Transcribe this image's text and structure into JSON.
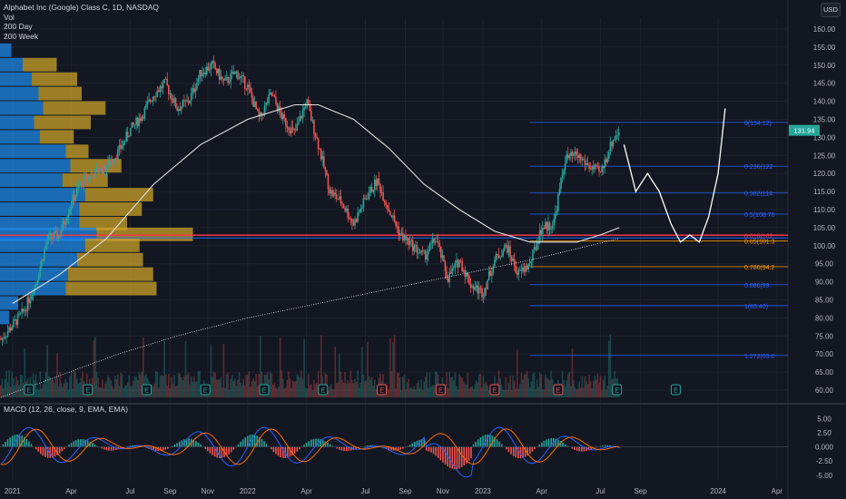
{
  "legend": {
    "symbol": "Alphabet Inc (Google) Class C, 1D, NASDAQ",
    "vol": "Vol",
    "ma200d": "200 Day",
    "ma200w": "200 Week"
  },
  "currency_button": "USD",
  "macd_label": "MACD (12, 26, close, 9, EMA, EMA)",
  "price_tag": "131.94",
  "colors": {
    "background": "#131722",
    "fib_blue": "#2962ff",
    "fib_key_red": "#f23645",
    "fib_orange": "#ff9800",
    "vp_blue": "#1e88e5",
    "vp_gold": "#c9a227",
    "macd_line": "#2962ff",
    "signal_line": "#ff6d00",
    "up": "#26a69a",
    "down": "#ef5350"
  },
  "chart_data": {
    "type": "line",
    "price_axis": {
      "ticks": [
        "160.00",
        "155.00",
        "150.00",
        "145.00",
        "140.00",
        "135.00",
        "130.00",
        "125.00",
        "120.00",
        "115.00",
        "110.00",
        "105.00",
        "100.00",
        "95.00",
        "90.00",
        "85.00",
        "80.00",
        "75.00",
        "70.00",
        "65.00",
        "60.00"
      ],
      "ylim": [
        58,
        163
      ]
    },
    "macd_axis": {
      "ticks": [
        "5.00",
        "2.50",
        "0.000",
        "-2.50",
        "-5.00"
      ],
      "ylim": [
        -6,
        6.5
      ]
    },
    "x_axis": {
      "labels": [
        {
          "t": 2021.0,
          "text": "2021"
        },
        {
          "t": 2021.25,
          "text": "Apr"
        },
        {
          "t": 2021.5,
          "text": "Jul"
        },
        {
          "t": 2021.67,
          "text": "Sep"
        },
        {
          "t": 2021.83,
          "text": "Nov"
        },
        {
          "t": 2022.0,
          "text": "2022"
        },
        {
          "t": 2022.25,
          "text": "Apr"
        },
        {
          "t": 2022.5,
          "text": "Jul"
        },
        {
          "t": 2022.67,
          "text": "Sep"
        },
        {
          "t": 2022.83,
          "text": "Nov"
        },
        {
          "t": 2023.0,
          "text": "2023"
        },
        {
          "t": 2023.25,
          "text": "Apr"
        },
        {
          "t": 2023.5,
          "text": "Jul"
        },
        {
          "t": 2023.67,
          "text": "Sep"
        },
        {
          "t": 2024.0,
          "text": "2024"
        },
        {
          "t": 2024.25,
          "text": "Apr"
        }
      ]
    },
    "price_series": [
      [
        2020.95,
        74
      ],
      [
        2021.0,
        78
      ],
      [
        2021.05,
        82
      ],
      [
        2021.1,
        90
      ],
      [
        2021.15,
        102
      ],
      [
        2021.2,
        103
      ],
      [
        2021.25,
        112
      ],
      [
        2021.3,
        118
      ],
      [
        2021.35,
        120
      ],
      [
        2021.4,
        122
      ],
      [
        2021.45,
        126
      ],
      [
        2021.5,
        132
      ],
      [
        2021.55,
        136
      ],
      [
        2021.6,
        142
      ],
      [
        2021.65,
        145
      ],
      [
        2021.7,
        138
      ],
      [
        2021.75,
        140
      ],
      [
        2021.8,
        148
      ],
      [
        2021.85,
        150
      ],
      [
        2021.9,
        145
      ],
      [
        2021.95,
        148
      ],
      [
        2022.0,
        144
      ],
      [
        2022.05,
        135
      ],
      [
        2022.1,
        142
      ],
      [
        2022.15,
        135
      ],
      [
        2022.2,
        131
      ],
      [
        2022.25,
        140
      ],
      [
        2022.3,
        128
      ],
      [
        2022.35,
        115
      ],
      [
        2022.4,
        112
      ],
      [
        2022.45,
        106
      ],
      [
        2022.5,
        113
      ],
      [
        2022.55,
        118
      ],
      [
        2022.6,
        110
      ],
      [
        2022.65,
        103
      ],
      [
        2022.7,
        100
      ],
      [
        2022.75,
        97
      ],
      [
        2022.8,
        102
      ],
      [
        2022.85,
        91
      ],
      [
        2022.9,
        96
      ],
      [
        2022.95,
        89
      ],
      [
        2023.0,
        87
      ],
      [
        2023.05,
        96
      ],
      [
        2023.1,
        100
      ],
      [
        2023.15,
        92
      ],
      [
        2023.2,
        95
      ],
      [
        2023.25,
        105
      ],
      [
        2023.3,
        106
      ],
      [
        2023.35,
        124
      ],
      [
        2023.4,
        125
      ],
      [
        2023.45,
        122
      ],
      [
        2023.5,
        120
      ],
      [
        2023.55,
        129
      ],
      [
        2023.58,
        131.94
      ]
    ],
    "ma200d": [
      [
        2021.0,
        84
      ],
      [
        2021.2,
        92
      ],
      [
        2021.4,
        102
      ],
      [
        2021.6,
        117
      ],
      [
        2021.8,
        128
      ],
      [
        2022.0,
        135
      ],
      [
        2022.2,
        139
      ],
      [
        2022.3,
        139
      ],
      [
        2022.45,
        135
      ],
      [
        2022.6,
        127
      ],
      [
        2022.75,
        117
      ],
      [
        2022.9,
        110
      ],
      [
        2023.05,
        104
      ],
      [
        2023.2,
        101
      ],
      [
        2023.3,
        101
      ],
      [
        2023.4,
        101
      ],
      [
        2023.5,
        103
      ],
      [
        2023.58,
        105
      ]
    ],
    "ma200w": [
      [
        2020.95,
        58
      ],
      [
        2021.2,
        64
      ],
      [
        2021.45,
        70
      ],
      [
        2021.7,
        75
      ],
      [
        2022.0,
        80
      ],
      [
        2022.3,
        84
      ],
      [
        2022.6,
        88
      ],
      [
        2022.9,
        92
      ],
      [
        2023.2,
        96
      ],
      [
        2023.58,
        102
      ]
    ],
    "projection": [
      [
        2023.6,
        128
      ],
      [
        2023.65,
        115
      ],
      [
        2023.7,
        120
      ],
      [
        2023.75,
        115
      ],
      [
        2023.8,
        106
      ],
      [
        2023.84,
        101
      ],
      [
        2023.88,
        103
      ],
      [
        2023.92,
        101
      ],
      [
        2023.96,
        108
      ],
      [
        2024.0,
        120
      ],
      [
        2024.03,
        138
      ]
    ],
    "fib_levels": [
      {
        "ratio": "0",
        "label": "0(134.12)",
        "price": 134.12,
        "color": "#2962ff"
      },
      {
        "ratio": "0.236",
        "label": "0.236(122",
        "price": 122.0,
        "color": "#2962ff"
      },
      {
        "ratio": "0.382",
        "label": "0.382(114.",
        "price": 114.6,
        "color": "#2962ff"
      },
      {
        "ratio": "0.5",
        "label": "0.5(108.76",
        "price": 108.76,
        "color": "#2962ff"
      },
      {
        "ratio": "0.618",
        "label": "0.618(102",
        "price": 102.9,
        "color": "#f23645"
      },
      {
        "ratio": "0.65",
        "label": "0.65(101.3",
        "price": 101.3,
        "color": "#ff9800"
      },
      {
        "ratio": "0.786",
        "label": "0.786(94.2",
        "price": 94.2,
        "color": "#ff9800"
      },
      {
        "ratio": "0.886",
        "label": "0.886(89.",
        "price": 89.2,
        "color": "#2962ff"
      },
      {
        "ratio": "1",
        "label": "1(83.40)",
        "price": 83.4,
        "color": "#2962ff"
      },
      {
        "ratio": "1.272",
        "label": "1.272(69.6",
        "price": 69.6,
        "color": "#2962ff"
      }
    ],
    "volume_profile": [
      {
        "price": 154,
        "up": 10,
        "down": 0
      },
      {
        "price": 150,
        "up": 20,
        "down": 30
      },
      {
        "price": 146,
        "up": 28,
        "down": 40
      },
      {
        "price": 142,
        "up": 34,
        "down": 38
      },
      {
        "price": 138,
        "up": 38,
        "down": 55
      },
      {
        "price": 134,
        "up": 30,
        "down": 50
      },
      {
        "price": 130,
        "up": 35,
        "down": 30
      },
      {
        "price": 126,
        "up": 58,
        "down": 20
      },
      {
        "price": 122,
        "up": 62,
        "down": 45
      },
      {
        "price": 118,
        "up": 55,
        "down": 40
      },
      {
        "price": 114,
        "up": 75,
        "down": 60
      },
      {
        "price": 110,
        "up": 70,
        "down": 55
      },
      {
        "price": 106,
        "up": 70,
        "down": 42
      },
      {
        "price": 103,
        "up": 85,
        "down": 85
      },
      {
        "price": 100,
        "up": 75,
        "down": 48
      },
      {
        "price": 96,
        "up": 68,
        "down": 58
      },
      {
        "price": 92,
        "up": 60,
        "down": 75
      },
      {
        "price": 88,
        "up": 58,
        "down": 80
      },
      {
        "price": 84,
        "up": 16,
        "down": 0
      },
      {
        "price": 80,
        "up": 8,
        "down": 0
      }
    ],
    "earnings_markers": [
      2021.07,
      2021.32,
      2021.57,
      2021.82,
      2022.07,
      2022.32,
      2022.57,
      2022.82,
      2023.05,
      2023.32,
      2023.57,
      2023.82
    ]
  }
}
